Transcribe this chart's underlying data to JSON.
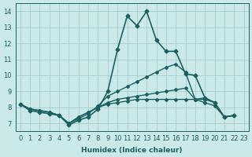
{
  "xlabel": "Humidex (Indice chaleur)",
  "ylabel": "",
  "bg_color": "#cce9e9",
  "line_color": "#1a6060",
  "grid_color": "#aacccc",
  "xlim": [
    -0.5,
    23.5
  ],
  "ylim": [
    6.5,
    14.5
  ],
  "yticks": [
    7,
    8,
    9,
    10,
    11,
    12,
    13,
    14
  ],
  "xticks": [
    0,
    1,
    2,
    3,
    4,
    5,
    6,
    7,
    8,
    9,
    10,
    11,
    12,
    13,
    14,
    15,
    16,
    17,
    18,
    19,
    20,
    21,
    22,
    23
  ],
  "lines": [
    {
      "x": [
        0,
        1,
        2,
        3,
        4,
        5,
        6,
        7,
        8,
        9,
        10,
        11,
        12,
        13,
        14,
        15,
        16,
        17,
        18,
        19,
        20,
        21,
        22
      ],
      "y": [
        8.2,
        7.8,
        7.7,
        7.6,
        7.5,
        6.9,
        7.2,
        7.4,
        7.9,
        9.0,
        11.6,
        13.7,
        13.1,
        14.0,
        12.2,
        11.5,
        11.5,
        10.1,
        10.0,
        8.6,
        8.3,
        7.4,
        7.5
      ],
      "lw": 1.2,
      "ms": 2.5
    },
    {
      "x": [
        0,
        1,
        2,
        3,
        4,
        5,
        6,
        7,
        8,
        9,
        10,
        11,
        12,
        13,
        14,
        15,
        16,
        17,
        18,
        19,
        20,
        21,
        22
      ],
      "y": [
        8.2,
        7.9,
        7.8,
        7.7,
        7.5,
        7.0,
        7.3,
        7.6,
        8.1,
        8.7,
        9.0,
        9.3,
        9.6,
        9.9,
        10.2,
        10.5,
        10.7,
        10.2,
        8.5,
        8.3,
        8.1,
        7.4,
        7.5
      ],
      "lw": 1.0,
      "ms": 2.0
    },
    {
      "x": [
        0,
        1,
        2,
        3,
        4,
        5,
        6,
        7,
        8,
        9,
        10,
        11,
        12,
        13,
        14,
        15,
        16,
        17,
        18,
        19,
        20,
        21,
        22
      ],
      "y": [
        8.2,
        7.9,
        7.8,
        7.7,
        7.5,
        7.0,
        7.4,
        7.7,
        8.0,
        8.3,
        8.5,
        8.6,
        8.7,
        8.8,
        8.9,
        9.0,
        9.1,
        9.2,
        8.5,
        8.6,
        8.3,
        7.4,
        7.5
      ],
      "lw": 1.0,
      "ms": 2.0
    },
    {
      "x": [
        0,
        1,
        2,
        3,
        4,
        5,
        6,
        7,
        8,
        9,
        10,
        11,
        12,
        13,
        14,
        15,
        16,
        17,
        18,
        19,
        20,
        21,
        22
      ],
      "y": [
        8.2,
        7.9,
        7.8,
        7.7,
        7.5,
        7.0,
        7.4,
        7.7,
        8.0,
        8.2,
        8.3,
        8.4,
        8.5,
        8.5,
        8.5,
        8.5,
        8.5,
        8.5,
        8.5,
        8.5,
        8.3,
        7.4,
        7.5
      ],
      "lw": 1.0,
      "ms": 2.0
    }
  ]
}
